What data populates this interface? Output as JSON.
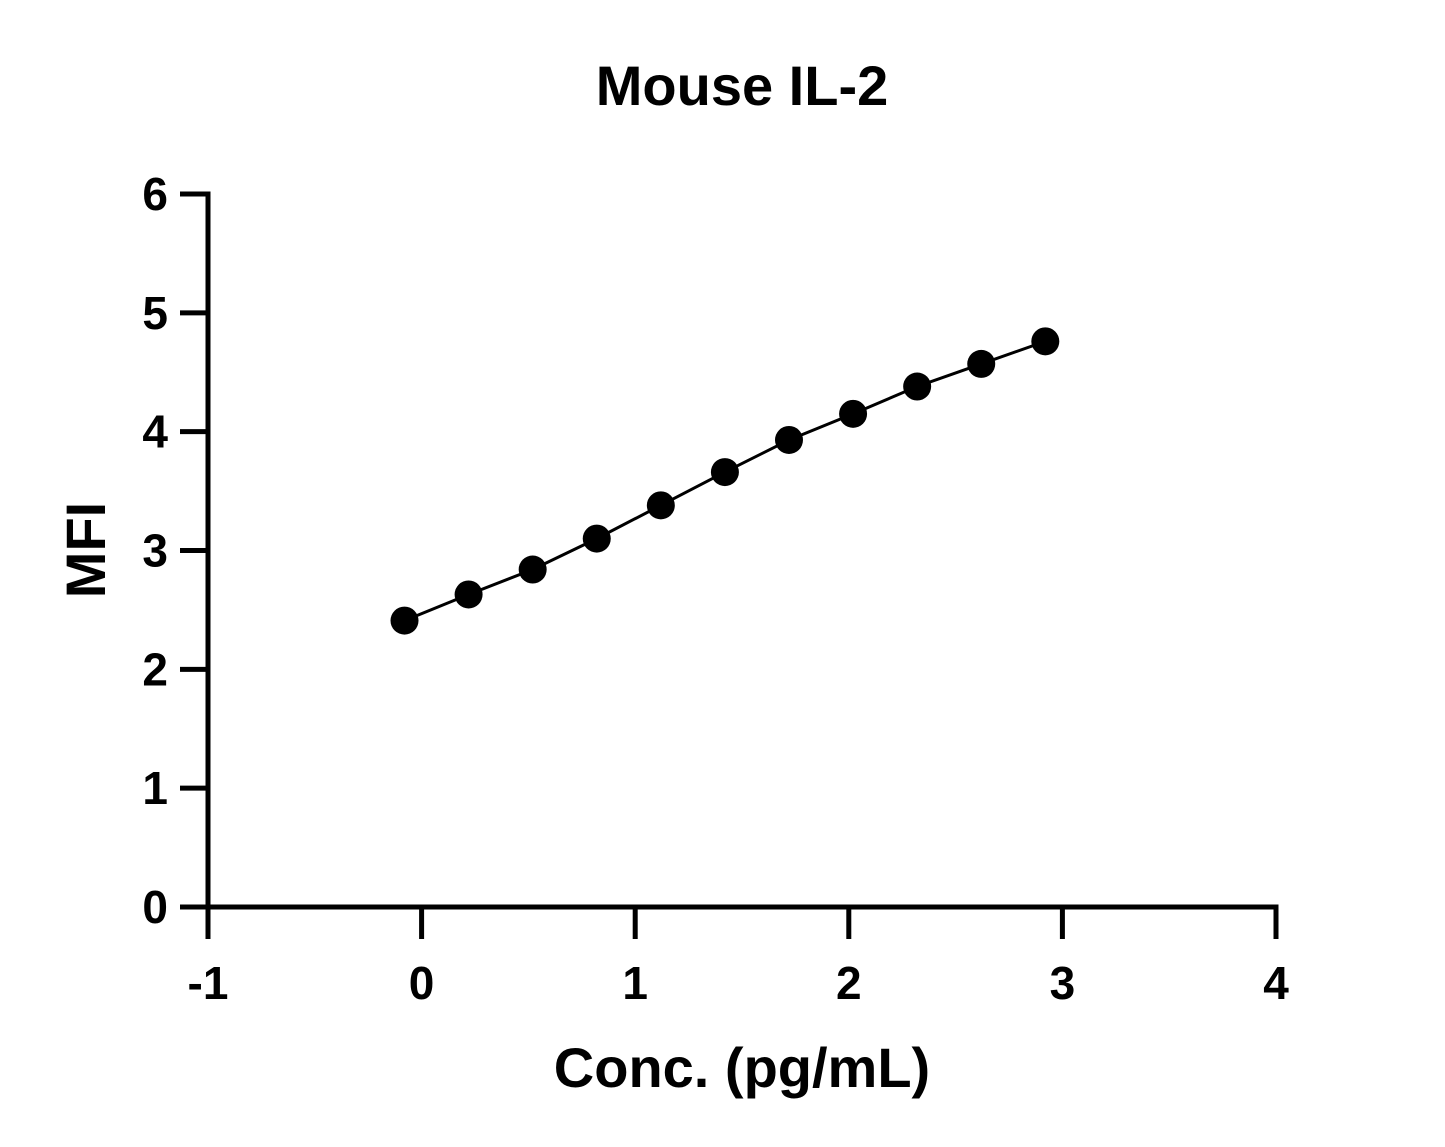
{
  "chart_data": {
    "type": "scatter",
    "title": "Mouse IL-2",
    "xlabel": "Conc. (pg/mL)",
    "ylabel": "MFI",
    "xlim": [
      -1,
      4
    ],
    "ylim": [
      0,
      6
    ],
    "xticks": [
      "-1",
      "0",
      "1",
      "2",
      "3",
      "4"
    ],
    "yticks": [
      "0",
      "1",
      "2",
      "3",
      "4",
      "5",
      "6"
    ],
    "grid": false,
    "legend": "none",
    "connect_points": true,
    "series": [
      {
        "x": [
          -0.08,
          0.22,
          0.52,
          0.82,
          1.12,
          1.42,
          1.72,
          2.02,
          2.32,
          2.62,
          2.92
        ],
        "y": [
          2.41,
          2.63,
          2.84,
          3.1,
          3.38,
          3.66,
          3.93,
          4.15,
          4.38,
          4.57,
          4.76
        ],
        "color": "#000000"
      }
    ]
  }
}
